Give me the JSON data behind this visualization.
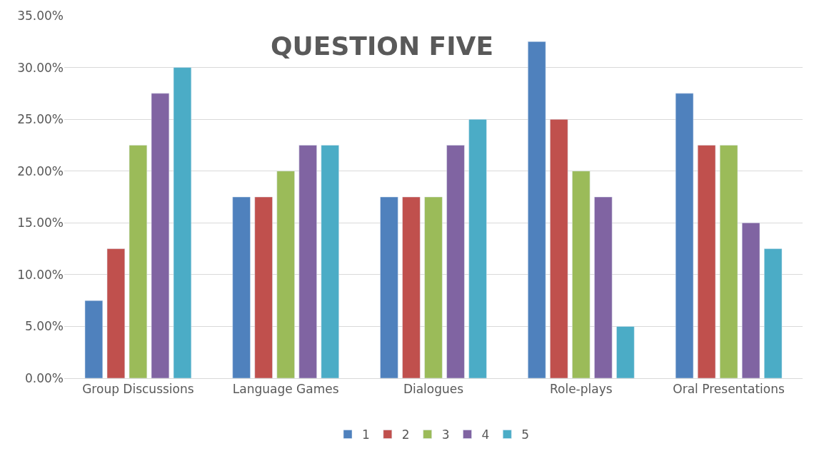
{
  "chart_data": {
    "type": "bar",
    "title": "QUESTION FIVE",
    "categories": [
      "Group Discussions",
      "Language Games",
      "Dialogues",
      "Role-plays",
      "Oral Presentations"
    ],
    "series": [
      {
        "name": "1",
        "color": "#4f81bd",
        "values": [
          7.5,
          17.5,
          17.5,
          32.5,
          27.5
        ]
      },
      {
        "name": "2",
        "color": "#c0504d",
        "values": [
          12.5,
          17.5,
          17.5,
          25,
          22.5
        ]
      },
      {
        "name": "3",
        "color": "#9bbb59",
        "values": [
          22.5,
          20,
          17.5,
          20,
          22.5
        ]
      },
      {
        "name": "4",
        "color": "#8064a2",
        "values": [
          27.5,
          22.5,
          22.5,
          17.5,
          15
        ]
      },
      {
        "name": "5",
        "color": "#4bacc6",
        "values": [
          30,
          22.5,
          25,
          5,
          12.5
        ]
      }
    ],
    "ylim": [
      0,
      35
    ],
    "yticks": [
      {
        "value": 0,
        "label": "0.00%"
      },
      {
        "value": 5,
        "label": "5.00%"
      },
      {
        "value": 10,
        "label": "10.00%"
      },
      {
        "value": 15,
        "label": "15.00%"
      },
      {
        "value": 20,
        "label": "20.00%"
      },
      {
        "value": 25,
        "label": "25.00%"
      },
      {
        "value": 30,
        "label": "30.00%"
      },
      {
        "value": 35,
        "label": "35.00%"
      }
    ],
    "grid": "y",
    "legend": "bottom"
  }
}
